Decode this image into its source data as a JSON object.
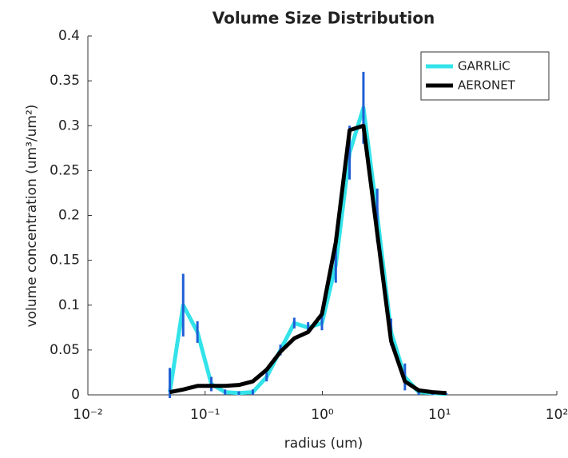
{
  "chart_data": {
    "type": "line",
    "title": "Volume Size Distribution",
    "xlabel": "radius (um)",
    "ylabel": "volume concentration  (um³/um²)",
    "xscale": "log",
    "x": [
      0.05,
      0.065,
      0.086,
      0.113,
      0.148,
      0.194,
      0.255,
      0.335,
      0.439,
      0.576,
      0.756,
      0.992,
      1.302,
      1.708,
      2.241,
      2.94,
      3.857,
      5.061,
      6.641,
      8.713,
      11.43
    ],
    "series": [
      {
        "name": "GARRLiC",
        "color": "#33e3ea",
        "errorbar_color": "#1f5fd6",
        "values": [
          0.003,
          0.1,
          0.07,
          0.012,
          0.003,
          0.002,
          0.003,
          0.02,
          0.05,
          0.08,
          0.075,
          0.08,
          0.145,
          0.27,
          0.32,
          0.2,
          0.07,
          0.02,
          0.003,
          0.002,
          0.001
        ],
        "errors": [
          0.027,
          0.035,
          0.012,
          0.008,
          0.003,
          0.002,
          0.003,
          0.005,
          0.006,
          0.006,
          0.006,
          0.008,
          0.02,
          0.03,
          0.04,
          0.03,
          0.015,
          0.015,
          0.003,
          0.002,
          0.001
        ]
      },
      {
        "name": "AERONET",
        "color": "#000000",
        "values": [
          0.003,
          0.006,
          0.01,
          0.01,
          0.01,
          0.011,
          0.015,
          0.028,
          0.048,
          0.063,
          0.07,
          0.09,
          0.17,
          0.295,
          0.3,
          0.18,
          0.06,
          0.015,
          0.005,
          0.003,
          0.002
        ]
      }
    ],
    "xlim": [
      0.01,
      100
    ],
    "xticks": [
      {
        "value": 0.01,
        "label": "10⁻²"
      },
      {
        "value": 0.1,
        "label": "10⁻¹"
      },
      {
        "value": 1,
        "label": "10⁰"
      },
      {
        "value": 10,
        "label": "10¹"
      },
      {
        "value": 100,
        "label": "10²"
      }
    ],
    "ylim": [
      0,
      0.4
    ],
    "yticks": [
      0,
      0.05,
      0.1,
      0.15,
      0.2,
      0.25,
      0.3,
      0.35,
      0.4
    ],
    "legend": "upper right"
  }
}
